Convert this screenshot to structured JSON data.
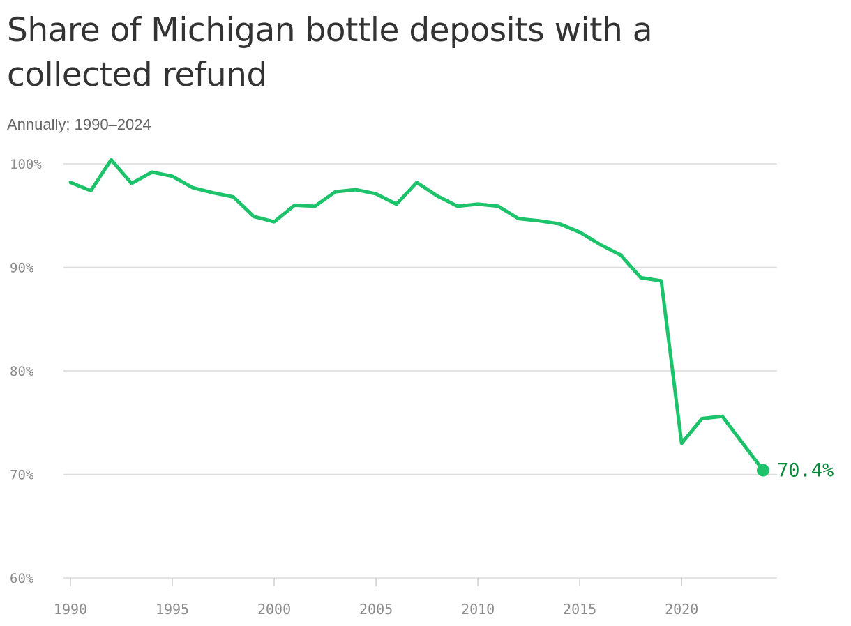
{
  "title": "Share of Michigan bottle deposits with a collected refund",
  "subtitle": "Annually; 1990–2024",
  "colors": {
    "line": "#1dc36a",
    "label": "#0b8a3c",
    "grid": "#dcdcdc",
    "axis_text": "#8c8c8c"
  },
  "chart_data": {
    "type": "line",
    "title": "Share of Michigan bottle deposits with a collected refund",
    "subtitle": "Annually; 1990–2024",
    "xlabel": "",
    "ylabel": "",
    "xlim": [
      1990,
      2024
    ],
    "ylim": [
      60,
      100
    ],
    "grid": true,
    "y_ticks": [
      {
        "value": 100,
        "label": "100%"
      },
      {
        "value": 90,
        "label": "90%"
      },
      {
        "value": 80,
        "label": "80%"
      },
      {
        "value": 70,
        "label": "70%"
      },
      {
        "value": 60,
        "label": "60%"
      }
    ],
    "x_ticks": [
      {
        "value": 1990,
        "label": "1990"
      },
      {
        "value": 1995,
        "label": "1995"
      },
      {
        "value": 2000,
        "label": "2000"
      },
      {
        "value": 2005,
        "label": "2005"
      },
      {
        "value": 2010,
        "label": "2010"
      },
      {
        "value": 2015,
        "label": "2015"
      },
      {
        "value": 2020,
        "label": "2020"
      }
    ],
    "x": [
      1990,
      1991,
      1992,
      1993,
      1994,
      1995,
      1996,
      1997,
      1998,
      1999,
      2000,
      2001,
      2002,
      2003,
      2004,
      2005,
      2006,
      2007,
      2008,
      2009,
      2010,
      2011,
      2012,
      2013,
      2014,
      2015,
      2016,
      2017,
      2018,
      2019,
      2020,
      2021,
      2022,
      2023,
      2024
    ],
    "y": [
      98.2,
      97.4,
      100.4,
      98.1,
      99.2,
      98.8,
      97.7,
      97.2,
      96.8,
      94.9,
      94.4,
      96.0,
      95.9,
      97.3,
      97.5,
      97.1,
      96.1,
      98.2,
      96.9,
      95.9,
      96.1,
      95.9,
      94.7,
      94.5,
      94.2,
      93.4,
      92.2,
      91.2,
      89.0,
      88.7,
      73.0,
      75.4,
      75.6,
      73.0,
      70.4
    ],
    "end_label": "70.4%"
  }
}
